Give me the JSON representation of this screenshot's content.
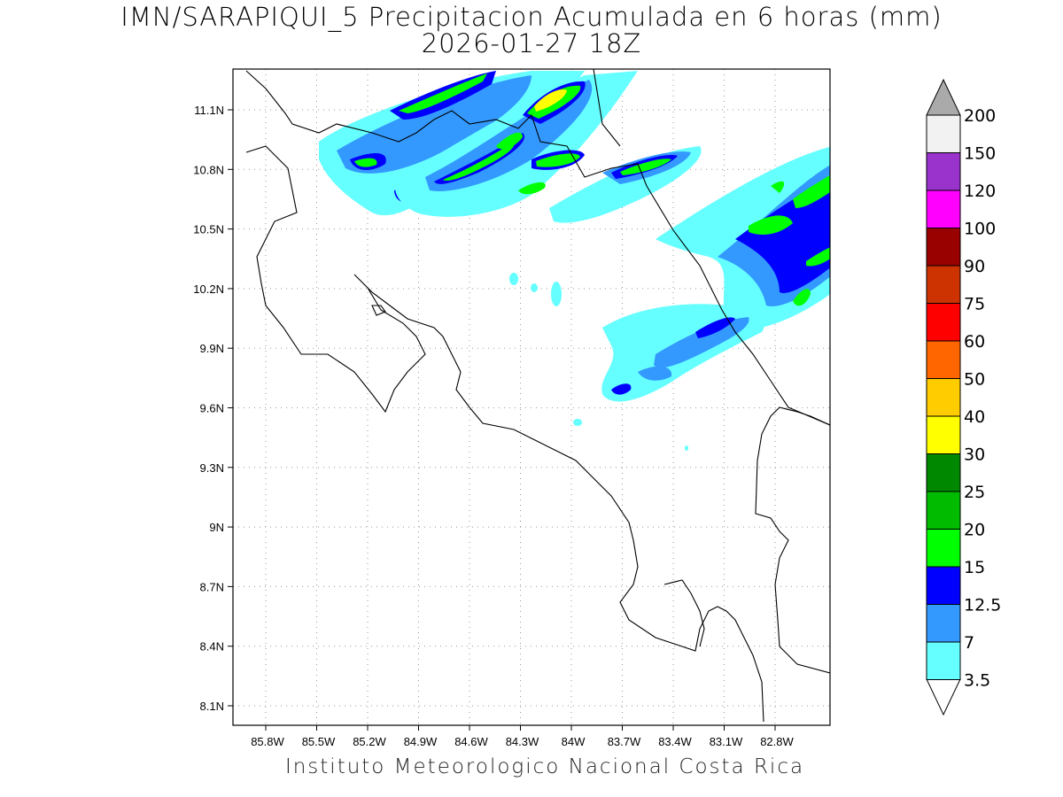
{
  "title": {
    "line1": "IMN/SARAPIQUI_5 Precipitacion Acumulada en 6 horas (mm)",
    "line2": "2026-01-27 18Z"
  },
  "credit": "Instituto Meteorologico Nacional Costa Rica",
  "map": {
    "lat_ticks": [
      "11.1N",
      "10.8N",
      "10.5N",
      "10.2N",
      "9.9N",
      "9.6N",
      "9.3N",
      "9N",
      "8.7N",
      "8.4N",
      "8.1N"
    ],
    "lon_ticks": [
      "85.8W",
      "85.5W",
      "85.2W",
      "84.9W",
      "84.6W",
      "84.3W",
      "84W",
      "83.7W",
      "83.4W",
      "83.1W",
      "82.8W"
    ],
    "grid": "dotted"
  },
  "colorbar": {
    "labels": [
      "200",
      "150",
      "120",
      "100",
      "90",
      "75",
      "60",
      "50",
      "40",
      "30",
      "25",
      "20",
      "15",
      "12.5",
      "7",
      "3.5"
    ],
    "colors": [
      "#f2f2f2",
      "#9933cc",
      "#ff00ff",
      "#990000",
      "#cc3300",
      "#ff0000",
      "#ff6600",
      "#ffcc00",
      "#ffff00",
      "#008800",
      "#00bb00",
      "#00ff00",
      "#0000ff",
      "#3399ff",
      "#66ffff"
    ],
    "top_arrow_color": "#aaaaaa"
  },
  "precip_colors": {
    "cyan": "#66ffff",
    "light_blue": "#3399ff",
    "blue": "#0000ff",
    "green": "#00ff00",
    "med_green": "#00bb00",
    "yellow": "#ffff00"
  }
}
